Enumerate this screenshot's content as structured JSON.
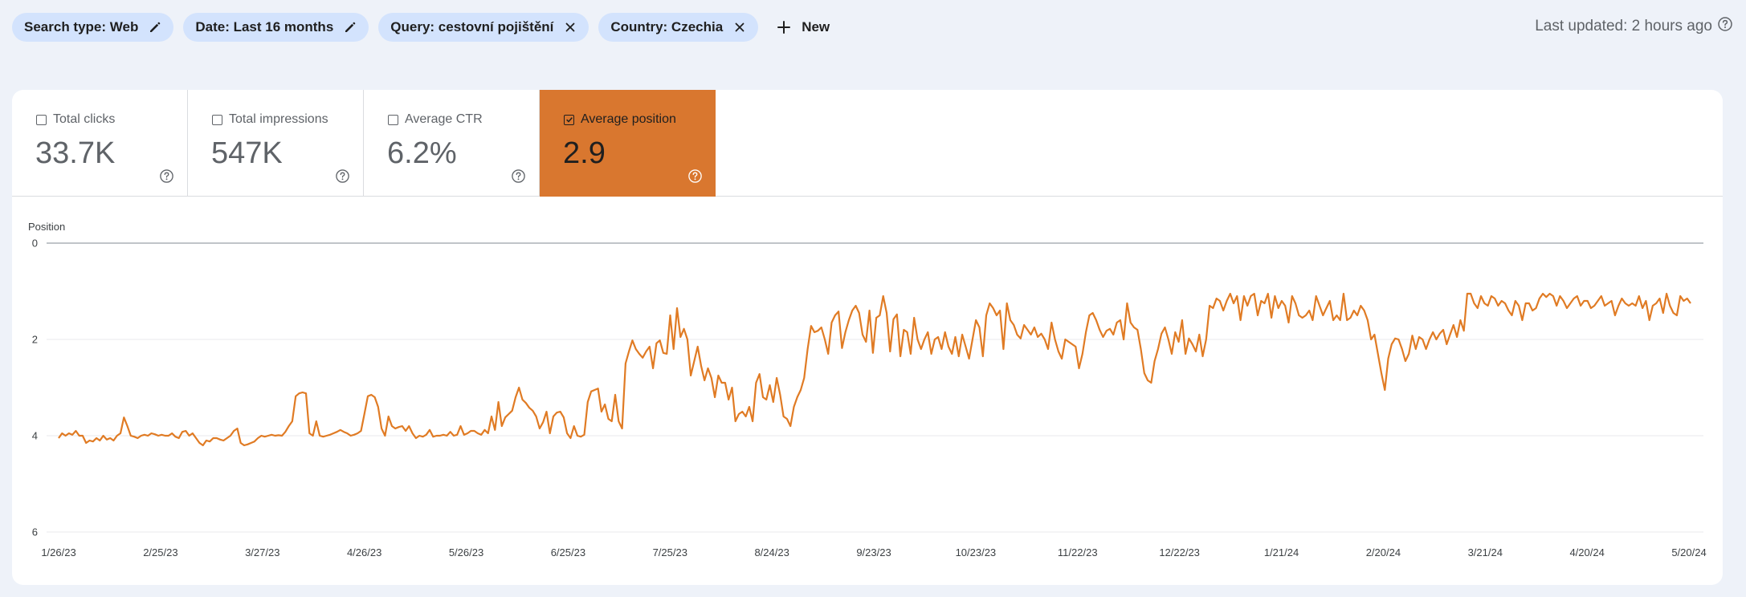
{
  "filters": [
    {
      "label": "Search type: Web",
      "action_icon": "pencil-icon"
    },
    {
      "label": "Date: Last 16 months",
      "action_icon": "pencil-icon"
    },
    {
      "label": "Query: cestovní pojištění",
      "action_icon": "close-icon"
    },
    {
      "label": "Country: Czechia",
      "action_icon": "close-icon"
    }
  ],
  "new_button": {
    "label": "New",
    "icon": "plus-icon"
  },
  "last_updated": {
    "label": "Last updated: 2 hours ago",
    "icon": "help-icon"
  },
  "metrics": [
    {
      "label": "Total clicks",
      "value": "33.7K",
      "checked": false
    },
    {
      "label": "Total impressions",
      "value": "547K",
      "checked": false
    },
    {
      "label": "Average CTR",
      "value": "6.2%",
      "checked": false
    },
    {
      "label": "Average position",
      "value": "2.9",
      "checked": true
    }
  ],
  "colors": {
    "accent": "#d9772f",
    "chip_bg": "#d3e3fd",
    "line": "#e07b24"
  },
  "chart_data": {
    "type": "line",
    "ylabel": "Position",
    "y_reversed": true,
    "ylim": [
      0,
      6
    ],
    "yticks": [
      0,
      2,
      4,
      6
    ],
    "x_tick_labels": [
      "1/26/23",
      "2/25/23",
      "3/27/23",
      "4/26/23",
      "5/26/23",
      "6/25/23",
      "7/25/23",
      "8/24/23",
      "9/23/23",
      "10/23/23",
      "11/22/23",
      "12/22/23",
      "1/21/24",
      "2/20/24",
      "3/21/24",
      "4/20/24",
      "5/20/24"
    ],
    "series": [
      {
        "values": [
          4.05,
          3.95,
          4.0,
          3.95,
          3.98,
          3.9,
          4.0,
          4.0,
          4.15,
          4.1,
          4.12,
          4.05,
          4.1,
          4.0,
          4.08,
          4.05,
          4.1,
          4.0,
          3.95,
          3.62,
          3.8,
          4.0,
          4.02,
          4.05,
          4.0,
          3.98,
          4.0,
          3.95,
          3.97,
          4.0,
          3.98,
          4.0,
          4.0,
          3.95,
          4.02,
          4.05,
          3.92,
          3.9,
          4.0,
          3.95,
          4.05,
          4.15,
          4.2,
          4.1,
          4.12,
          4.05,
          4.05,
          4.08,
          4.1,
          4.05,
          4.0,
          3.9,
          3.85,
          4.15,
          4.2,
          4.18,
          4.15,
          4.12,
          4.05,
          4.0,
          4.02,
          4.0,
          3.98,
          4.0,
          3.99,
          4.0,
          3.92,
          3.8,
          3.7,
          3.18,
          3.12,
          3.1,
          3.12,
          3.95,
          4.0,
          3.7,
          4.0,
          4.02,
          4.0,
          3.98,
          3.95,
          3.92,
          3.88,
          3.92,
          3.95,
          4.0,
          3.98,
          3.95,
          3.9,
          3.55,
          3.18,
          3.15,
          3.2,
          3.4,
          3.85,
          4.0,
          3.6,
          3.8,
          3.85,
          3.82,
          3.8,
          3.9,
          3.8,
          3.95,
          4.05,
          4.0,
          4.02,
          3.98,
          3.88,
          4.02,
          4.0,
          4.0,
          3.98,
          4.0,
          3.92,
          4.0,
          3.98,
          3.8,
          3.98,
          3.95,
          3.9,
          3.9,
          3.95,
          3.98,
          3.88,
          3.95,
          3.6,
          3.88,
          3.3,
          3.8,
          3.62,
          3.55,
          3.48,
          3.2,
          3.0,
          3.25,
          3.32,
          3.42,
          3.48,
          3.6,
          3.85,
          3.72,
          3.5,
          3.95,
          3.6,
          3.52,
          3.5,
          3.62,
          3.95,
          4.05,
          3.8,
          4.0,
          4.02,
          3.98,
          3.3,
          3.08,
          3.05,
          3.02,
          3.5,
          3.35,
          3.65,
          3.7,
          3.15,
          3.7,
          3.85,
          2.5,
          2.25,
          2.02,
          2.2,
          2.3,
          2.38,
          2.25,
          2.15,
          2.6,
          2.08,
          2.02,
          2.28,
          2.3,
          1.5,
          2.2,
          1.35,
          1.95,
          1.78,
          2.0,
          2.75,
          2.45,
          2.15,
          2.55,
          2.85,
          2.6,
          2.8,
          3.2,
          2.75,
          2.9,
          2.9,
          3.25,
          3.0,
          3.7,
          3.55,
          3.5,
          3.6,
          3.4,
          3.7,
          2.9,
          2.72,
          3.2,
          3.25,
          2.95,
          3.3,
          2.8,
          3.15,
          3.6,
          3.65,
          3.8,
          3.4,
          3.2,
          3.05,
          2.8,
          2.2,
          1.72,
          1.85,
          1.82,
          1.75,
          2.0,
          2.3,
          1.65,
          1.5,
          1.42,
          2.18,
          1.85,
          1.6,
          1.4,
          1.3,
          1.45,
          1.9,
          2.05,
          1.4,
          2.28,
          1.55,
          1.5,
          1.1,
          1.45,
          2.25,
          1.58,
          1.48,
          2.35,
          1.8,
          1.85,
          2.3,
          1.55,
          2.0,
          2.2,
          2.0,
          1.85,
          2.3,
          2.0,
          1.95,
          2.2,
          1.85,
          2.15,
          2.3,
          1.95,
          2.35,
          1.9,
          2.15,
          2.4,
          2.0,
          1.6,
          1.75,
          2.35,
          1.5,
          1.25,
          1.35,
          1.5,
          1.4,
          2.2,
          1.25,
          1.6,
          1.7,
          1.9,
          1.98,
          1.7,
          1.8,
          1.9,
          1.75,
          1.95,
          1.88,
          2.0,
          2.2,
          1.65,
          2.0,
          2.25,
          2.4,
          2.0,
          2.05,
          2.1,
          2.15,
          2.6,
          2.3,
          1.85,
          1.5,
          1.45,
          1.6,
          1.8,
          1.95,
          1.82,
          1.78,
          1.9,
          1.65,
          1.6,
          2.0,
          1.25,
          1.65,
          1.75,
          1.8,
          2.2,
          2.7,
          2.85,
          2.9,
          2.45,
          2.2,
          1.88,
          1.75,
          2.0,
          2.3,
          1.85,
          2.05,
          1.6,
          2.3,
          1.98,
          2.1,
          2.25,
          1.9,
          2.35,
          2.0,
          1.3,
          1.35,
          1.15,
          1.2,
          1.4,
          1.2,
          1.05,
          1.25,
          1.1,
          1.6,
          1.1,
          1.3,
          1.1,
          1.05,
          1.5,
          1.2,
          1.25,
          1.05,
          1.55,
          1.1,
          1.35,
          1.2,
          1.3,
          1.65,
          1.1,
          1.25,
          1.5,
          1.55,
          1.5,
          1.4,
          1.6,
          1.1,
          1.3,
          1.5,
          1.35,
          1.2,
          1.6,
          1.5,
          1.6,
          1.05,
          1.6,
          1.55,
          1.4,
          1.5,
          1.3,
          1.4,
          1.6,
          2.0,
          1.9,
          2.3,
          2.7,
          3.05,
          2.4,
          2.1,
          1.98,
          2.0,
          2.2,
          2.45,
          2.3,
          1.92,
          2.2,
          1.95,
          2.0,
          2.2,
          2.0,
          1.85,
          2.0,
          1.88,
          1.8,
          2.1,
          1.9,
          1.7,
          1.95,
          1.6,
          1.82,
          1.05,
          1.05,
          1.25,
          1.35,
          1.1,
          1.25,
          1.3,
          1.1,
          1.15,
          1.3,
          1.2,
          1.25,
          1.4,
          1.5,
          1.2,
          1.3,
          1.6,
          1.25,
          1.25,
          1.4,
          1.35,
          1.15,
          1.05,
          1.12,
          1.05,
          1.1,
          1.3,
          1.1,
          1.2,
          1.35,
          1.25,
          1.15,
          1.1,
          1.3,
          1.2,
          1.2,
          1.35,
          1.3,
          1.2,
          1.1,
          1.3,
          1.25,
          1.2,
          1.5,
          1.3,
          1.15,
          1.25,
          1.3,
          1.25,
          1.3,
          1.1,
          1.35,
          1.2,
          1.6,
          1.3,
          1.25,
          1.15,
          1.45,
          1.05,
          1.3,
          1.45,
          1.5,
          1.1,
          1.2,
          1.15,
          1.25
        ]
      }
    ]
  }
}
